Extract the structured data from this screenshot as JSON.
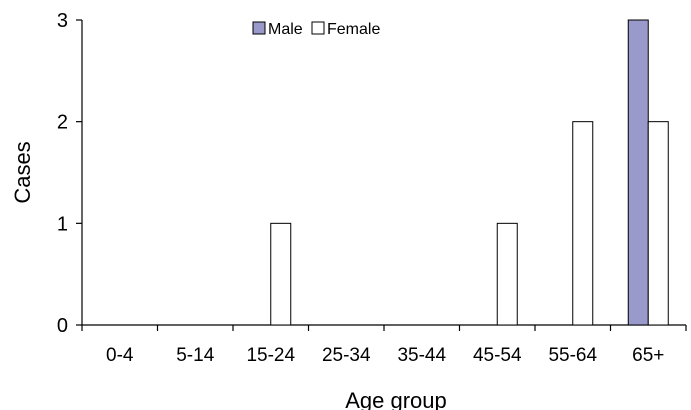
{
  "chart_data": {
    "type": "bar",
    "categories": [
      "0-4",
      "5-14",
      "15-24",
      "25-34",
      "35-44",
      "45-54",
      "55-64",
      "65+"
    ],
    "series": [
      {
        "name": "Male",
        "values": [
          0,
          0,
          0,
          0,
          0,
          0,
          0,
          3
        ],
        "color": "#9999cc"
      },
      {
        "name": "Female",
        "values": [
          0,
          0,
          1,
          0,
          0,
          1,
          2,
          2
        ],
        "color": "#ffffff"
      }
    ],
    "xlabel": "Age group",
    "ylabel": "Cases",
    "ylim": [
      0,
      3
    ],
    "yticks": [
      0,
      1,
      2,
      3
    ],
    "grid": false,
    "legend": "top-center"
  }
}
